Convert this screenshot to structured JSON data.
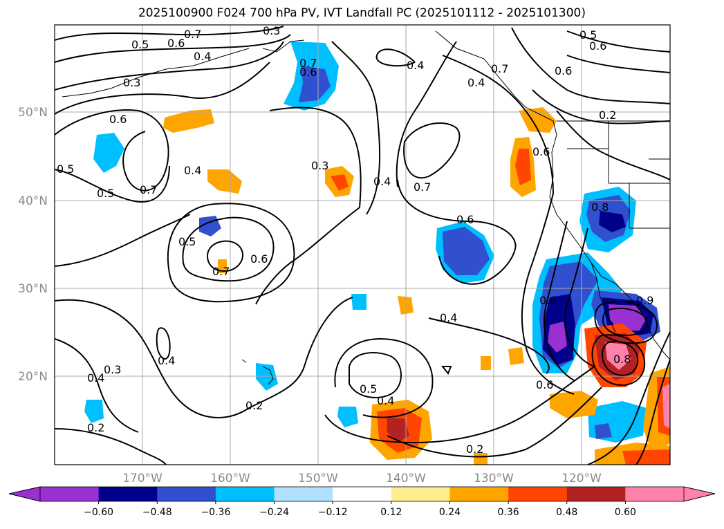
{
  "title": "2025100900 F024 700 hPa PV, IVT Landfall PC (2025101112 - 2025101300)",
  "lat_labels": [
    "50°N",
    "40°N",
    "30°N",
    "20°N"
  ],
  "lon_labels": [
    "170°W",
    "160°W",
    "150°W",
    "140°W",
    "130°W",
    "120°W"
  ],
  "contour_labels": [
    "0.7",
    "0.3",
    "0.5",
    "0.6",
    "0.4",
    "0.3",
    "0.6",
    "0.5",
    "0.5",
    "0.7",
    "0.4",
    "0.7",
    "0.6",
    "0.3",
    "0.4",
    "0.4",
    "0.7",
    "0.5",
    "0.6",
    "0.7",
    "0.6",
    "0.6",
    "0.2",
    "0.5",
    "0.6",
    "0.6",
    "0.4",
    "0.7",
    "0.6",
    "0.8",
    "0.4",
    "0.4",
    "0.3",
    "0.4",
    "0.2",
    "0.2",
    "0.5",
    "0.4",
    "0.6",
    "0.2",
    "0.9",
    "0.8"
  ],
  "colorbar": {
    "ticks": [
      "−0.60",
      "−0.48",
      "−0.36",
      "−0.24",
      "−0.12",
      "0.12",
      "0.24",
      "0.36",
      "0.48",
      "0.60"
    ],
    "colors": [
      "#9b30d0",
      "#00008b",
      "#3050d0",
      "#00bfff",
      "#b0e2ff",
      "#ffffff",
      "#ffec8b",
      "#ffa500",
      "#ff4500",
      "#b22222",
      "#ff82ab"
    ]
  }
}
